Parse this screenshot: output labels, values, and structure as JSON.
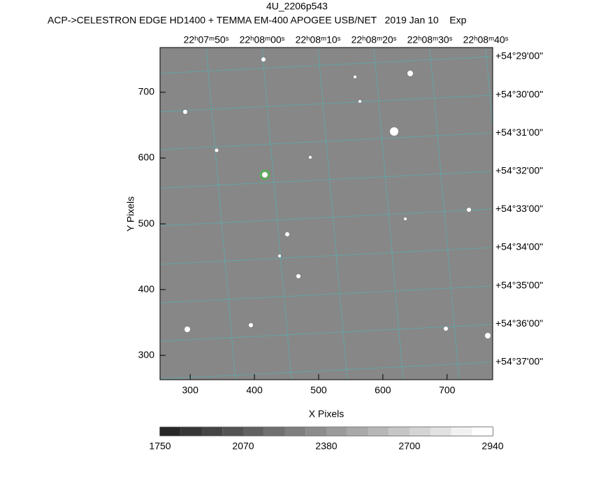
{
  "chart_data": {
    "type": "image",
    "title": "4U_2206p543",
    "subtitle": "ACP->CELESTRON EDGE HD1400 + TEMMA EM-400 APOGEE USB/NET   2019 Jan 10    Exp",
    "xlabel": "X Pixels",
    "ylabel": "Y Pixels",
    "xlim": [
      253,
      771
    ],
    "ylim": [
      263,
      768
    ],
    "xticks": [
      300,
      400,
      500,
      600,
      700
    ],
    "yticks": [
      300,
      400,
      500,
      600,
      700
    ],
    "ra_labels": [
      "22ʰ07ᵐ50ˢ",
      "22ʰ08ᵐ00ˢ",
      "22ʰ08ᵐ10ˢ",
      "22ʰ08ᵐ20ˢ",
      "22ʰ08ᵐ30ˢ",
      "22ʰ08ᵐ40ˢ"
    ],
    "dec_labels": [
      "+54°29'00\"",
      "+54°30'00\"",
      "+54°31'00\"",
      "+54°32'00\"",
      "+54°33'00\"",
      "+54°34'00\"",
      "+54°35'00\"",
      "+54°36'00\"",
      "+54°37'00\""
    ],
    "colorbar_labels": [
      1750,
      2070,
      2380,
      2700,
      2940
    ]
  }
}
